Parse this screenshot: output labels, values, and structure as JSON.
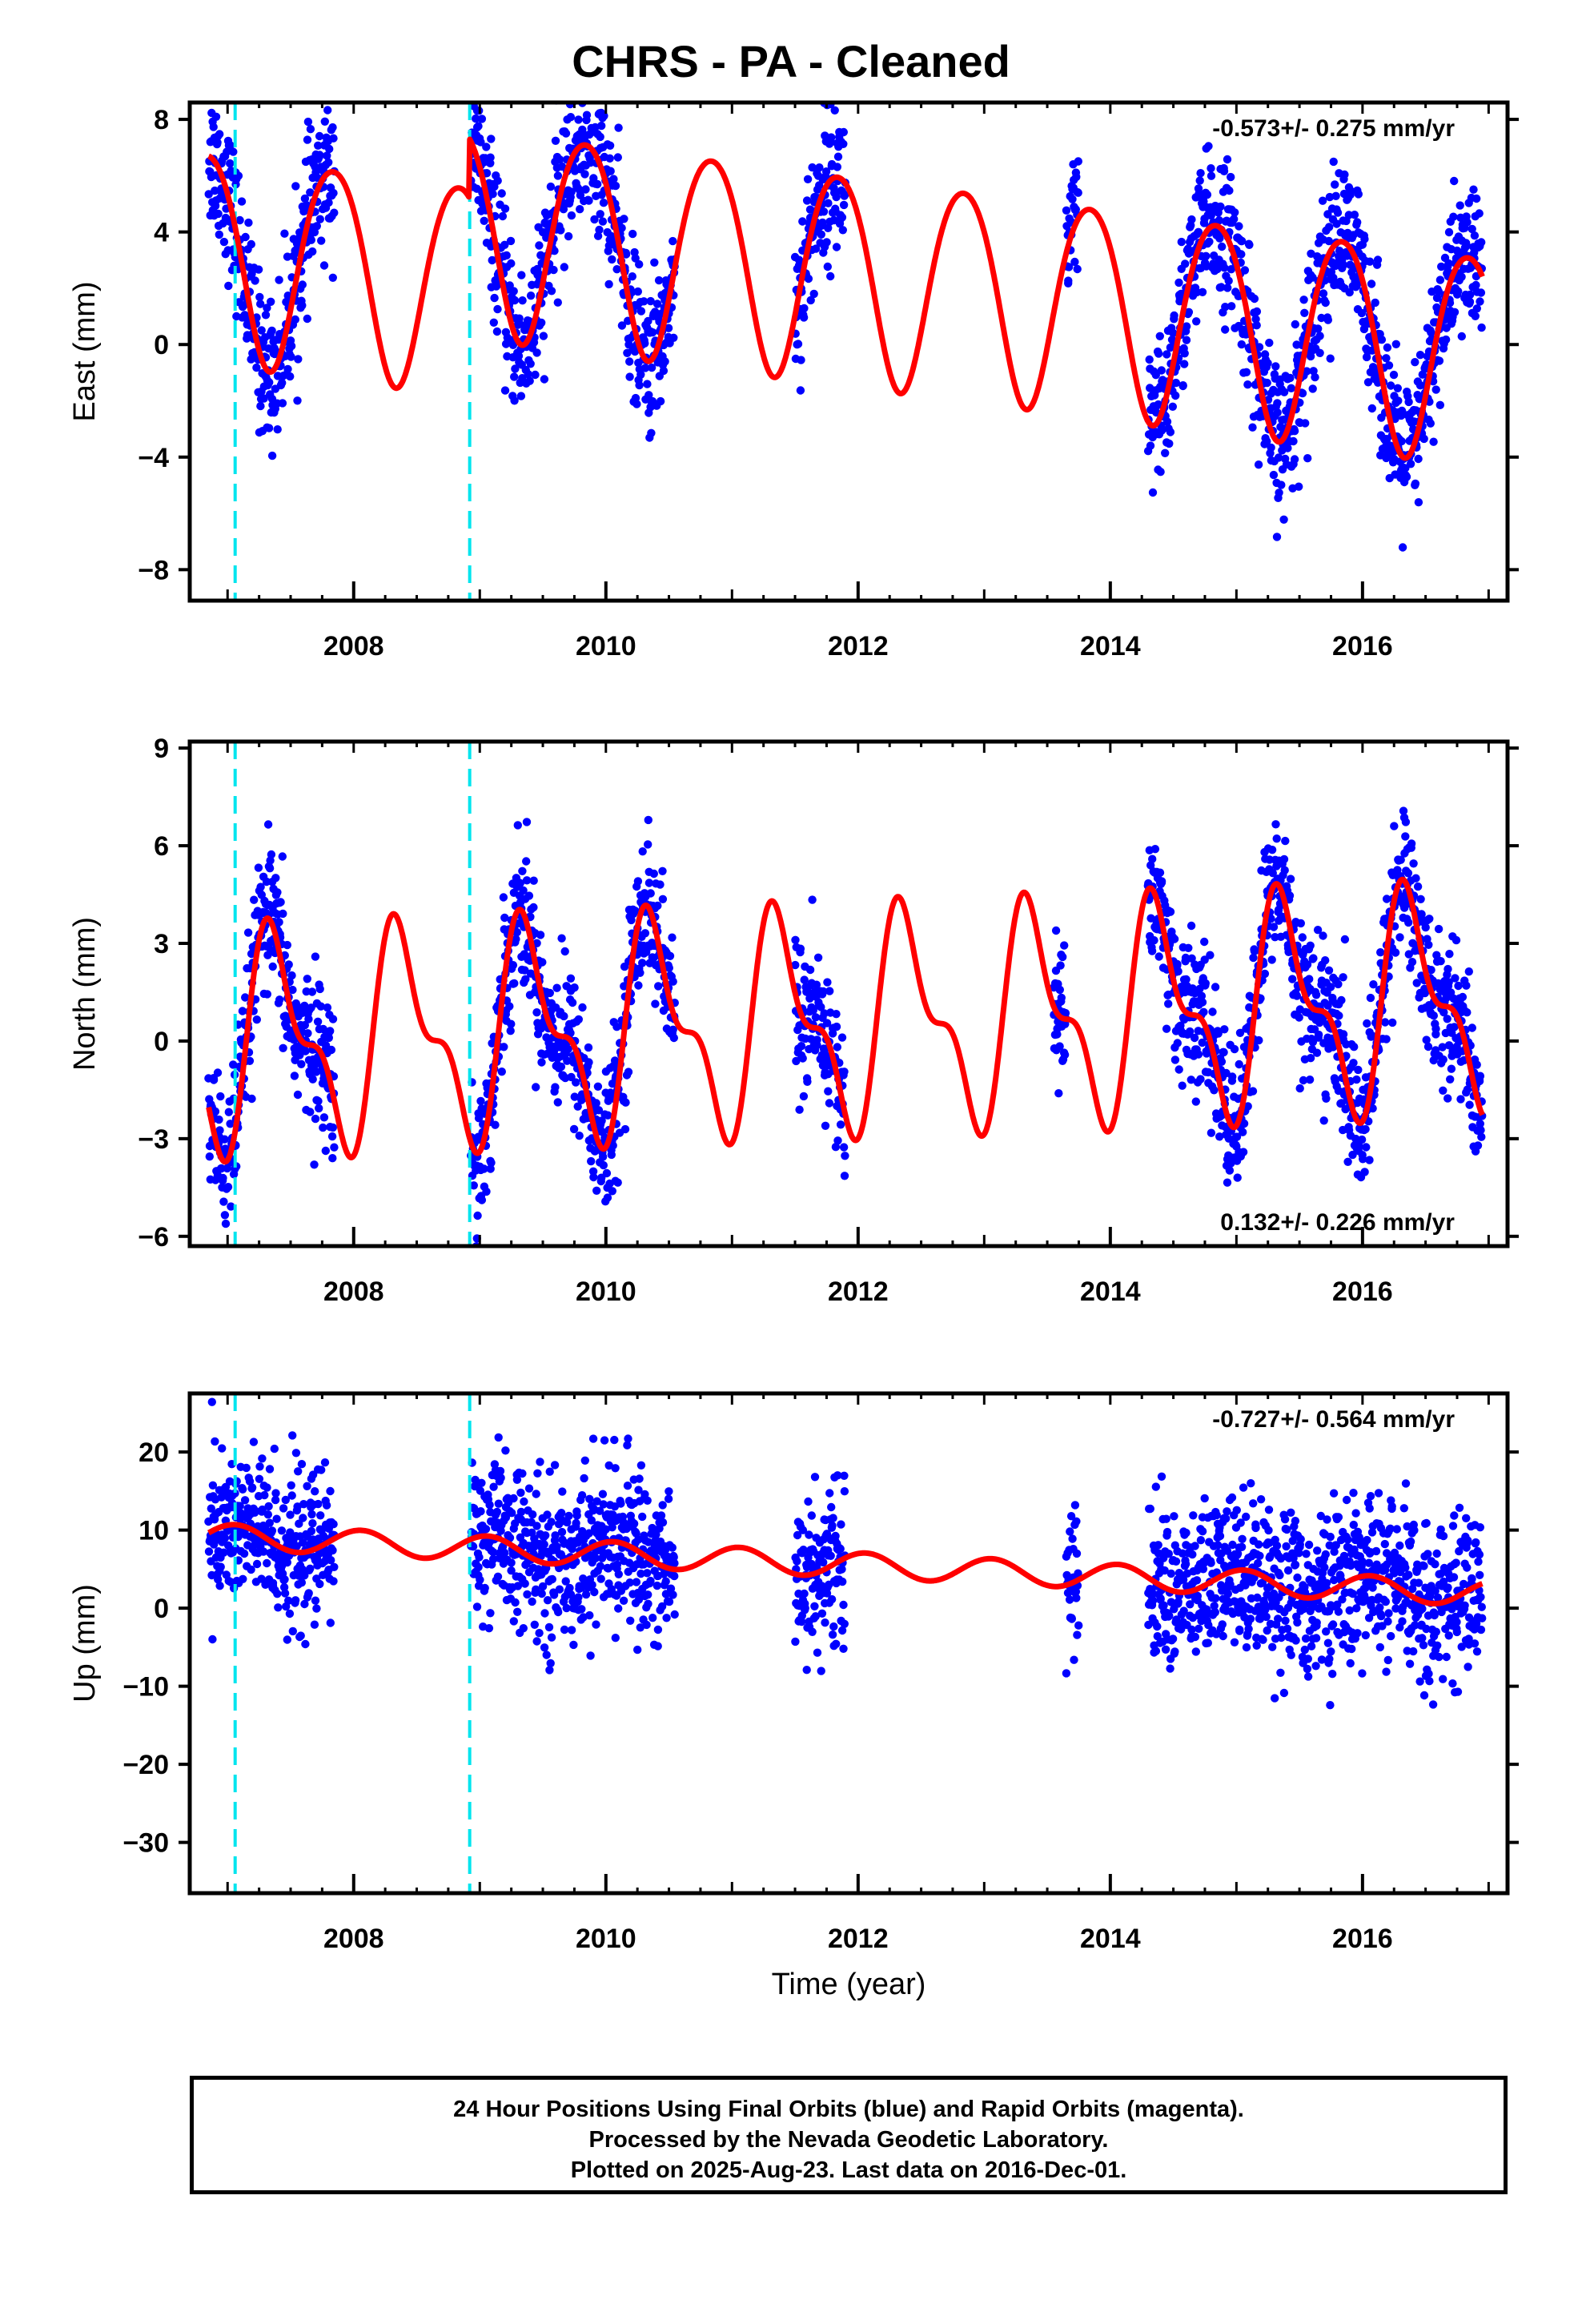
{
  "title": "CHRS  - PA - Cleaned",
  "xlabel": "Time (year)",
  "footer": {
    "line1": "24 Hour Positions Using Final Orbits (blue) and Rapid Orbits (magenta).",
    "line2": "Processed by the Nevada Geodetic Laboratory.",
    "line3": "Plotted on 2025-Aug-23. Last data on 2016-Dec-01."
  },
  "colors": {
    "data": "#0000ff",
    "model": "#ff0000",
    "offset": "#00e5ee",
    "frame": "#000000"
  },
  "chart_data": [
    {
      "type": "scatter",
      "panel": "east",
      "ylabel": "East (mm)",
      "rate": "-0.573+/- 0.275 mm/yr",
      "rate_position": "top-right",
      "xlim": [
        2006.7,
        2017.15
      ],
      "ylim": [
        -9.1,
        8.6
      ],
      "xticks": [
        2008,
        2010,
        2012,
        2014,
        2016
      ],
      "yticks": [
        -8,
        -4,
        0,
        4,
        8
      ],
      "ytick_labels": [
        "−8",
        "−4",
        "0",
        "4",
        "8"
      ],
      "offsets": [
        2007.06,
        2008.92
      ],
      "data_segments": [
        [
          2006.85,
          2007.85
        ],
        [
          2008.93,
          2010.55
        ],
        [
          2011.5,
          2011.9
        ],
        [
          2013.65,
          2013.75
        ],
        [
          2014.3,
          2016.95
        ]
      ],
      "model": {
        "offset": 0.4,
        "trend": -0.573,
        "amp": 3.7,
        "phase": 2.6,
        "amp2": 0.35,
        "phase2": 0.5,
        "steps": [
          {
            "t": 2008.92,
            "dy": 2.1
          }
        ]
      },
      "noise": 1.3,
      "series": [
        {
          "name": "Final Orbits (blue)"
        },
        {
          "name": "Model"
        }
      ]
    },
    {
      "type": "scatter",
      "panel": "north",
      "ylabel": "North (mm)",
      "rate": "0.132+/- 0.226 mm/yr",
      "rate_position": "bottom-right",
      "xlim": [
        2006.7,
        2017.15
      ],
      "ylim": [
        -6.3,
        9.2
      ],
      "xticks": [
        2008,
        2010,
        2012,
        2014,
        2016
      ],
      "yticks": [
        -6,
        -3,
        0,
        3,
        6,
        9
      ],
      "ytick_labels": [
        "−6",
        "−3",
        "0",
        "3",
        "6",
        "9"
      ],
      "offsets": [
        2007.06,
        2008.92
      ],
      "data_segments": [
        [
          2006.85,
          2007.85
        ],
        [
          2008.93,
          2010.55
        ],
        [
          2011.5,
          2011.9
        ],
        [
          2013.55,
          2013.65
        ],
        [
          2014.3,
          2016.95
        ]
      ],
      "model": {
        "offset": 0.6,
        "trend": 0.132,
        "amp": 2.9,
        "phase": -0.9,
        "amp2": 1.4,
        "phase2": -1.9,
        "steps": []
      },
      "noise": 1.1,
      "series": [
        {
          "name": "Final Orbits (blue)"
        },
        {
          "name": "Model"
        }
      ]
    },
    {
      "type": "scatter",
      "panel": "up",
      "ylabel": "Up (mm)",
      "rate": "-0.727+/- 0.564 mm/yr",
      "rate_position": "top-right",
      "xlim": [
        2006.7,
        2017.15
      ],
      "ylim": [
        -36.5,
        27.5
      ],
      "xticks": [
        2008,
        2010,
        2012,
        2014,
        2016
      ],
      "yticks": [
        -30,
        -20,
        -10,
        0,
        10,
        20
      ],
      "ytick_labels": [
        "−30",
        "−20",
        "−10",
        "0",
        "10",
        "20"
      ],
      "offsets": [
        2007.06,
        2008.92
      ],
      "data_segments": [
        [
          2006.85,
          2007.85
        ],
        [
          2008.93,
          2010.55
        ],
        [
          2011.5,
          2011.9
        ],
        [
          2013.65,
          2013.75
        ],
        [
          2014.3,
          2016.95
        ]
      ],
      "model": {
        "offset": 5.5,
        "trend": -0.727,
        "amp": 1.6,
        "phase": 1.2,
        "amp2": 0.0,
        "phase2": 0.0,
        "steps": []
      },
      "noise": 5.0,
      "series": [
        {
          "name": "Final Orbits (blue)"
        },
        {
          "name": "Model"
        }
      ]
    }
  ]
}
